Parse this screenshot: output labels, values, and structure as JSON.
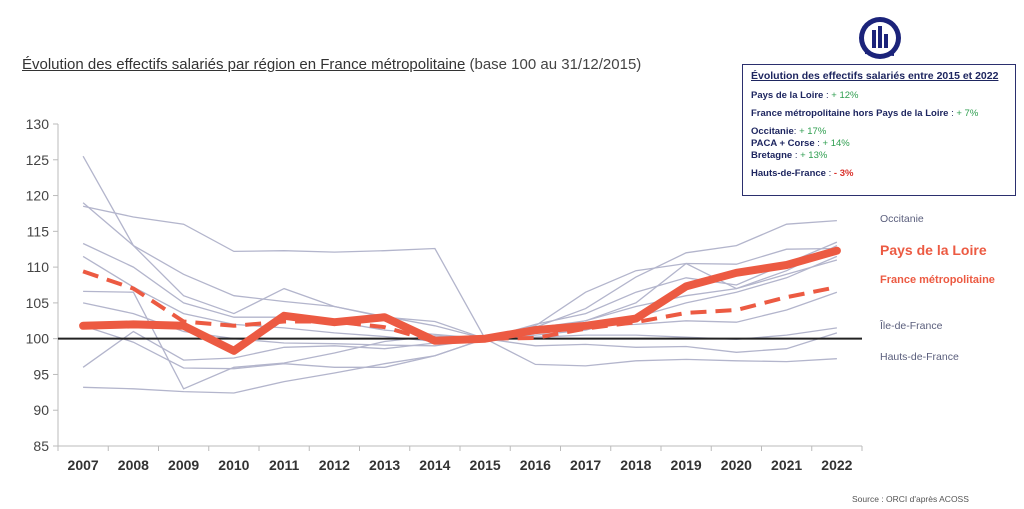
{
  "title": {
    "main": "Évolution des effectifs salariés par région en France métropolitaine",
    "sub": "(base 100 au 31/12/2015)"
  },
  "infobox": {
    "title": "Évolution des effectifs salariés entre 2015 et 2022",
    "rows": [
      {
        "label": "Pays de la Loire",
        "sep": " : ",
        "value": "+ 12%"
      },
      {
        "label": "France métropolitaine hors Pays de la Loire",
        "sep": " : ",
        "value": "+ 7%"
      },
      {
        "label": "Occitanie",
        "sep": ": ",
        "value": "+ 17%"
      },
      {
        "label": "PACA + Corse",
        "sep": " : ",
        "value": "+ 14%"
      },
      {
        "label": "Bretagne",
        "sep": " : ",
        "value": "+ 13%"
      },
      {
        "label": "Hauts-de-France",
        "sep": " : ",
        "value": "- 3%"
      }
    ]
  },
  "source": "Source : ORCI d'après ACOSS",
  "logo_icon": "orci-logo-icon",
  "colors": {
    "highlight": "#ec5a42",
    "region_lines": "#b3b5cc",
    "baseline": "#222222",
    "infobox_text": "#1e2660",
    "positive": "#2e9e4f",
    "negative": "#d9302a"
  },
  "chart_data": {
    "type": "line",
    "x": [
      2007,
      2008,
      2009,
      2010,
      2011,
      2012,
      2013,
      2014,
      2015,
      2016,
      2017,
      2018,
      2019,
      2020,
      2021,
      2022
    ],
    "ylim": [
      85,
      130
    ],
    "yticks": [
      85,
      90,
      95,
      100,
      105,
      110,
      115,
      120,
      125,
      130
    ],
    "reference_line": 100,
    "series": [
      {
        "name": "Pays de la Loire",
        "style": "highlight",
        "values": [
          101.8,
          102.0,
          101.8,
          98.3,
          103.2,
          102.3,
          103.0,
          99.7,
          100,
          101.2,
          101.8,
          102.8,
          107.3,
          109.2,
          110.3,
          112.3
        ]
      },
      {
        "name": "France métropolitaine",
        "style": "dashed",
        "values": [
          109.4,
          107.0,
          102.4,
          101.8,
          102.4,
          102.4,
          101.6,
          99.6,
          100,
          100.1,
          101.4,
          102.3,
          103.6,
          104.0,
          105.8,
          107.2
        ]
      },
      {
        "name": "Occitanie",
        "style": "region",
        "values": [
          113.3,
          110.0,
          105.0,
          103.0,
          103.0,
          102.4,
          101.2,
          100.6,
          100,
          101.6,
          104.2,
          108.6,
          112.0,
          113.0,
          116.0,
          116.5
        ]
      },
      {
        "name": "Île-de-France",
        "style": "region",
        "values": [
          96.0,
          101.0,
          97.0,
          97.3,
          98.8,
          99.0,
          98.6,
          99.4,
          100,
          99.0,
          99.2,
          98.8,
          98.9,
          98.1,
          98.6,
          100.8
        ]
      },
      {
        "name": "Hauts-de-France",
        "style": "region",
        "values": [
          93.2,
          93.0,
          92.6,
          92.4,
          94.0,
          95.2,
          96.5,
          97.6,
          100,
          96.4,
          96.2,
          96.9,
          97.1,
          96.9,
          96.8,
          97.2
        ]
      },
      {
        "name": "",
        "style": "region",
        "values": [
          125.5,
          113.0,
          106.0,
          103.5,
          107.0,
          104.5,
          103.0,
          102.4,
          100,
          102.0,
          103.5,
          106.5,
          108.5,
          107.5,
          110.5,
          113.5
        ]
      },
      {
        "name": "",
        "style": "region",
        "values": [
          118.5,
          117.0,
          116.0,
          112.2,
          112.3,
          112.1,
          112.3,
          112.6,
          100,
          101.8,
          106.5,
          109.5,
          110.5,
          110.4,
          112.5,
          112.6
        ]
      },
      {
        "name": "",
        "style": "region",
        "values": [
          119.0,
          113.0,
          109.0,
          106.0,
          105.2,
          104.5,
          103.1,
          101.8,
          100,
          101.0,
          102.5,
          104.5,
          106.0,
          107.0,
          109.0,
          111.0
        ]
      },
      {
        "name": "",
        "style": "region",
        "values": [
          111.5,
          107.2,
          103.5,
          102.0,
          101.5,
          100.8,
          100.3,
          99.6,
          100,
          100.5,
          101.2,
          103.0,
          105.0,
          106.5,
          108.5,
          111.5
        ]
      },
      {
        "name": "",
        "style": "region",
        "values": [
          106.6,
          106.5,
          93.0,
          96.0,
          96.6,
          98.0,
          99.6,
          100.4,
          100,
          101.5,
          102.5,
          105.0,
          110.5,
          107.0,
          109.5,
          113.0
        ]
      },
      {
        "name": "",
        "style": "region",
        "values": [
          105.0,
          103.5,
          101.0,
          100.0,
          99.4,
          99.3,
          99.1,
          99.0,
          100,
          100.2,
          100.5,
          100.5,
          100.2,
          99.9,
          100.5,
          101.5
        ]
      },
      {
        "name": "",
        "style": "region",
        "values": [
          101.8,
          99.5,
          95.9,
          95.8,
          96.5,
          96.0,
          96.0,
          97.6,
          100,
          101.0,
          101.8,
          102.0,
          102.5,
          102.3,
          104.0,
          106.5
        ]
      }
    ],
    "right_labels": [
      {
        "text": "Occitanie",
        "y": 116.5,
        "kind": "small"
      },
      {
        "text": "Pays de la Loire",
        "y": 112.3,
        "kind": "big"
      },
      {
        "text": "France métropolitaine",
        "y": 108.0,
        "kind": "mid"
      },
      {
        "text": "Île-de-France",
        "y": 101.5,
        "kind": "small"
      },
      {
        "text": "Hauts-de-France",
        "y": 97.2,
        "kind": "small"
      }
    ]
  }
}
